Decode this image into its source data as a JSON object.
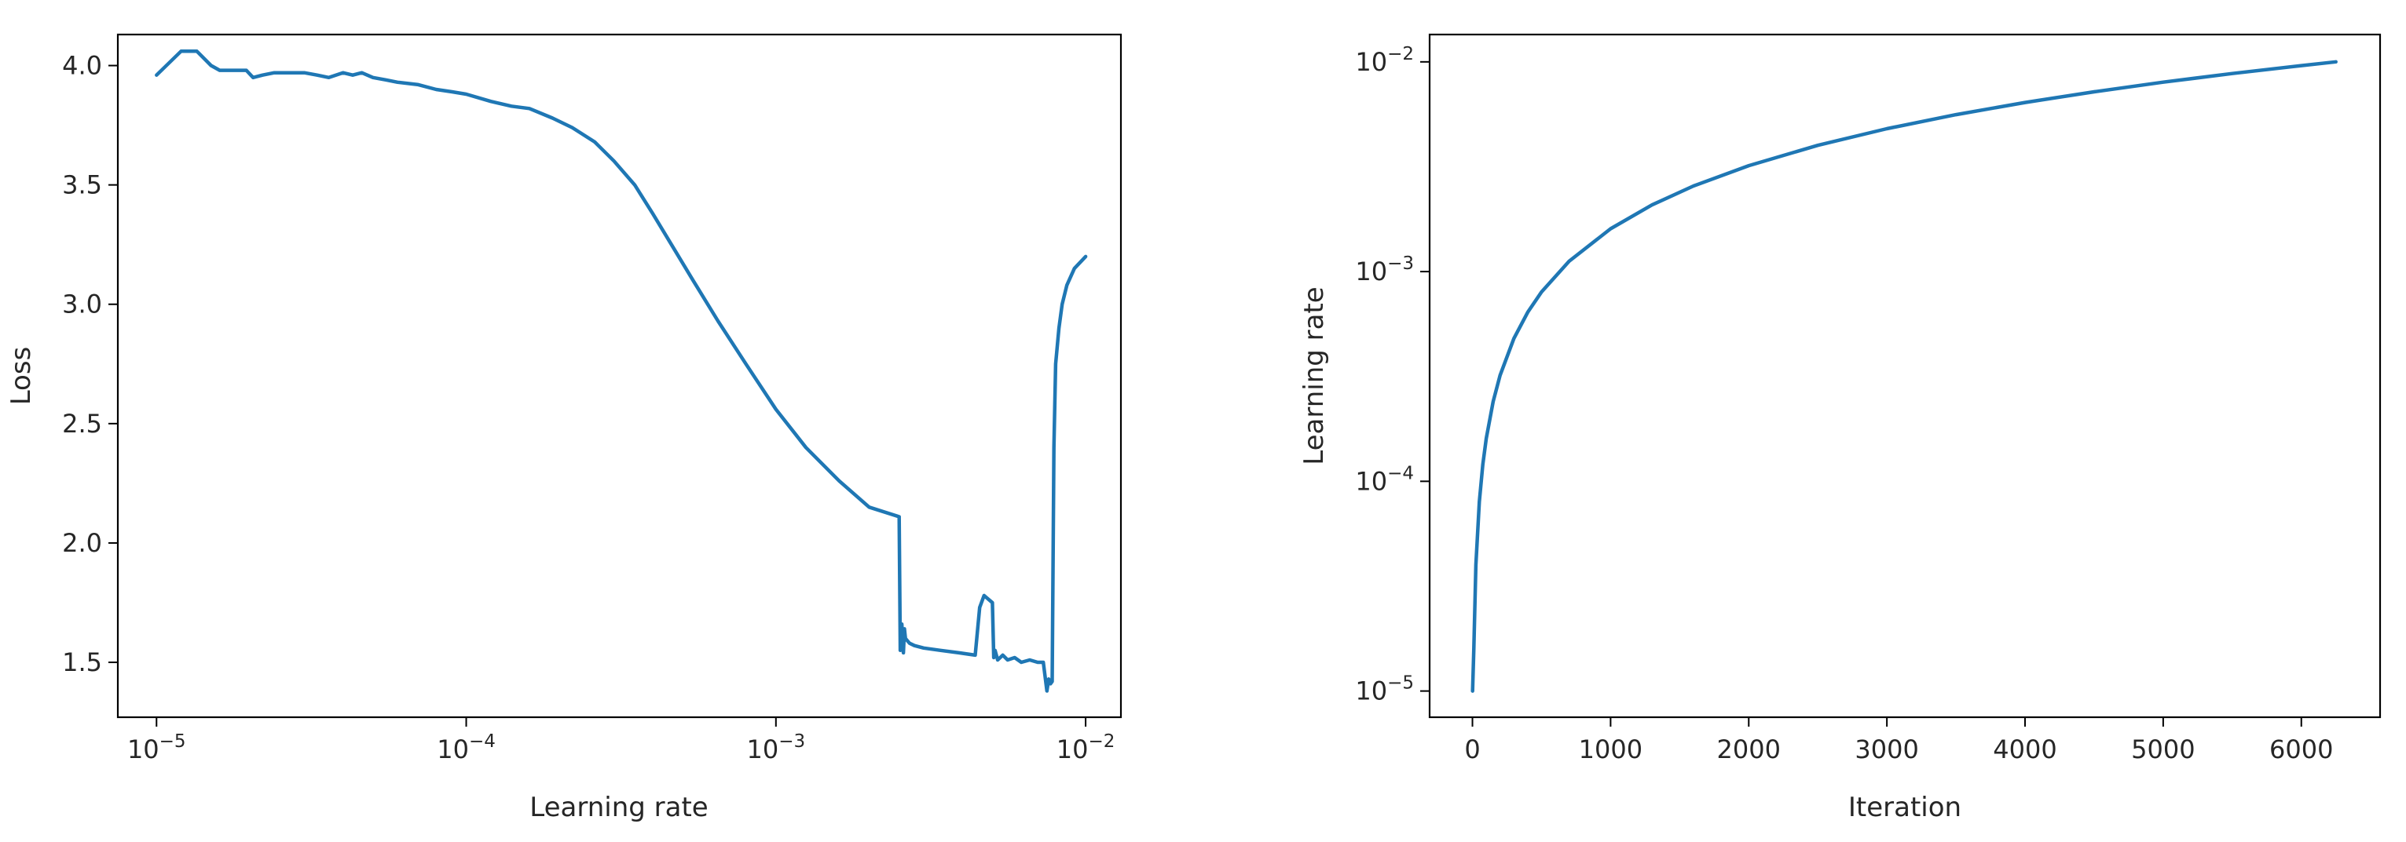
{
  "chart_data": [
    {
      "type": "line",
      "xlabel": "Learning rate",
      "ylabel": "Loss",
      "x_scale": "log",
      "xlim": [
        7.5e-06,
        0.013
      ],
      "ylim": [
        1.27,
        4.13
      ],
      "x_ticks": [
        {
          "value": 1e-05,
          "base": "10",
          "exp": "−5"
        },
        {
          "value": 0.0001,
          "base": "10",
          "exp": "−4"
        },
        {
          "value": 0.001,
          "base": "10",
          "exp": "−3"
        },
        {
          "value": 0.01,
          "base": "10",
          "exp": "−2"
        }
      ],
      "y_ticks": [
        {
          "value": 1.5,
          "label": "1.5"
        },
        {
          "value": 2.0,
          "label": "2.0"
        },
        {
          "value": 2.5,
          "label": "2.5"
        },
        {
          "value": 3.0,
          "label": "3.0"
        },
        {
          "value": 3.5,
          "label": "3.5"
        },
        {
          "value": 4.0,
          "label": "4.0"
        }
      ],
      "grid": false,
      "color": "#1f77b4",
      "series": [
        {
          "x": [
            1e-05,
            1.2e-05,
            1.35e-05,
            1.5e-05,
            1.6e-05,
            1.8e-05,
            1.95e-05,
            2.05e-05,
            2.2e-05,
            2.4e-05,
            2.7e-05,
            3e-05,
            3.3e-05,
            3.6e-05,
            4e-05,
            4.3e-05,
            4.6e-05,
            5e-05,
            5.5e-05,
            6e-05,
            7e-05,
            8e-05,
            9e-05,
            0.0001,
            0.00012,
            0.00014,
            0.00016,
            0.00019,
            0.00022,
            0.00026,
            0.0003,
            0.00035,
            0.0004,
            0.00046,
            0.00054,
            0.00065,
            0.0008,
            0.001,
            0.00125,
            0.0016,
            0.002,
            0.0025,
            0.00252,
            0.00255,
            0.00258,
            0.0026,
            0.00262,
            0.00266,
            0.0027,
            0.0028,
            0.003,
            0.0034,
            0.0039,
            0.0044,
            0.00455,
            0.0047,
            0.005,
            0.00505,
            0.0051,
            0.0052,
            0.0054,
            0.0056,
            0.0059,
            0.0062,
            0.0066,
            0.007,
            0.0073,
            0.0075,
            0.0076,
            0.0077,
            0.0078,
            0.0079,
            0.008,
            0.0082,
            0.0084,
            0.0087,
            0.0092,
            0.01
          ],
          "values": [
            3.96,
            4.06,
            4.06,
            4.0,
            3.98,
            3.98,
            3.98,
            3.95,
            3.96,
            3.97,
            3.97,
            3.97,
            3.96,
            3.95,
            3.97,
            3.96,
            3.97,
            3.95,
            3.94,
            3.93,
            3.92,
            3.9,
            3.89,
            3.88,
            3.85,
            3.83,
            3.82,
            3.78,
            3.74,
            3.68,
            3.6,
            3.5,
            3.38,
            3.25,
            3.1,
            2.93,
            2.75,
            2.56,
            2.4,
            2.26,
            2.15,
            2.11,
            1.55,
            1.66,
            1.54,
            1.64,
            1.6,
            1.59,
            1.58,
            1.57,
            1.56,
            1.55,
            1.54,
            1.53,
            1.73,
            1.78,
            1.75,
            1.52,
            1.55,
            1.51,
            1.53,
            1.51,
            1.52,
            1.5,
            1.51,
            1.5,
            1.5,
            1.38,
            1.43,
            1.41,
            1.42,
            2.4,
            2.75,
            2.9,
            3.0,
            3.08,
            3.15,
            3.2
          ]
        }
      ]
    },
    {
      "type": "line",
      "xlabel": "Iteration",
      "ylabel": "Learning rate",
      "y_scale": "log",
      "xlim": [
        -310,
        6570
      ],
      "ylim": [
        7.5e-06,
        0.0135
      ],
      "x_ticks": [
        {
          "value": 0,
          "label": "0"
        },
        {
          "value": 1000,
          "label": "1000"
        },
        {
          "value": 2000,
          "label": "2000"
        },
        {
          "value": 3000,
          "label": "3000"
        },
        {
          "value": 4000,
          "label": "4000"
        },
        {
          "value": 5000,
          "label": "5000"
        },
        {
          "value": 6000,
          "label": "6000"
        }
      ],
      "y_ticks": [
        {
          "value": 1e-05,
          "base": "10",
          "exp": "−5"
        },
        {
          "value": 0.0001,
          "base": "10",
          "exp": "−4"
        },
        {
          "value": 0.001,
          "base": "10",
          "exp": "−3"
        },
        {
          "value": 0.01,
          "base": "10",
          "exp": "−2"
        }
      ],
      "grid": false,
      "color": "#1f77b4",
      "series": [
        {
          "x": [
            1,
            10,
            25,
            50,
            75,
            100,
            150,
            200,
            300,
            400,
            500,
            700,
            1000,
            1300,
            1600,
            2000,
            2500,
            3000,
            3500,
            4000,
            4500,
            5000,
            5500,
            6000,
            6250
          ],
          "values": [
            1e-05,
            1.6e-05,
            4e-05,
            8e-05,
            0.00012,
            0.00016,
            0.00024,
            0.00032,
            0.00048,
            0.00064,
            0.0008,
            0.00112,
            0.0016,
            0.00208,
            0.00256,
            0.0032,
            0.004,
            0.0048,
            0.0056,
            0.0064,
            0.0072,
            0.008,
            0.0088,
            0.0096,
            0.01
          ]
        }
      ]
    }
  ]
}
